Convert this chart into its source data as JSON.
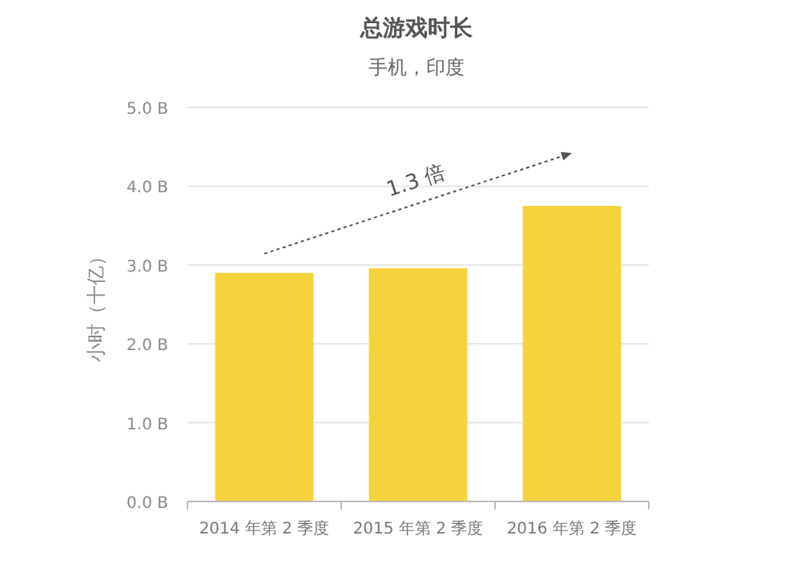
{
  "chart_data": {
    "type": "bar",
    "title": "总游戏时长",
    "subtitle": "手机，印度",
    "ylabel": "小时（十亿）",
    "categories": [
      "2014 年第 2 季度",
      "2015 年第 2 季度",
      "2016 年第 2 季度"
    ],
    "values": [
      2.9,
      2.96,
      3.75
    ],
    "color": "#f5d33c",
    "ylim": [
      0,
      5
    ],
    "yticks": [
      {
        "value": 0,
        "label": "0.0 B"
      },
      {
        "value": 1,
        "label": "1.0 B"
      },
      {
        "value": 2,
        "label": "2.0 B"
      },
      {
        "value": 3,
        "label": "3.0 B"
      },
      {
        "value": 4,
        "label": "4.0 B"
      },
      {
        "value": 5,
        "label": "5.0 B"
      }
    ],
    "grid": "y",
    "annotations": [
      "1.3 倍"
    ]
  }
}
